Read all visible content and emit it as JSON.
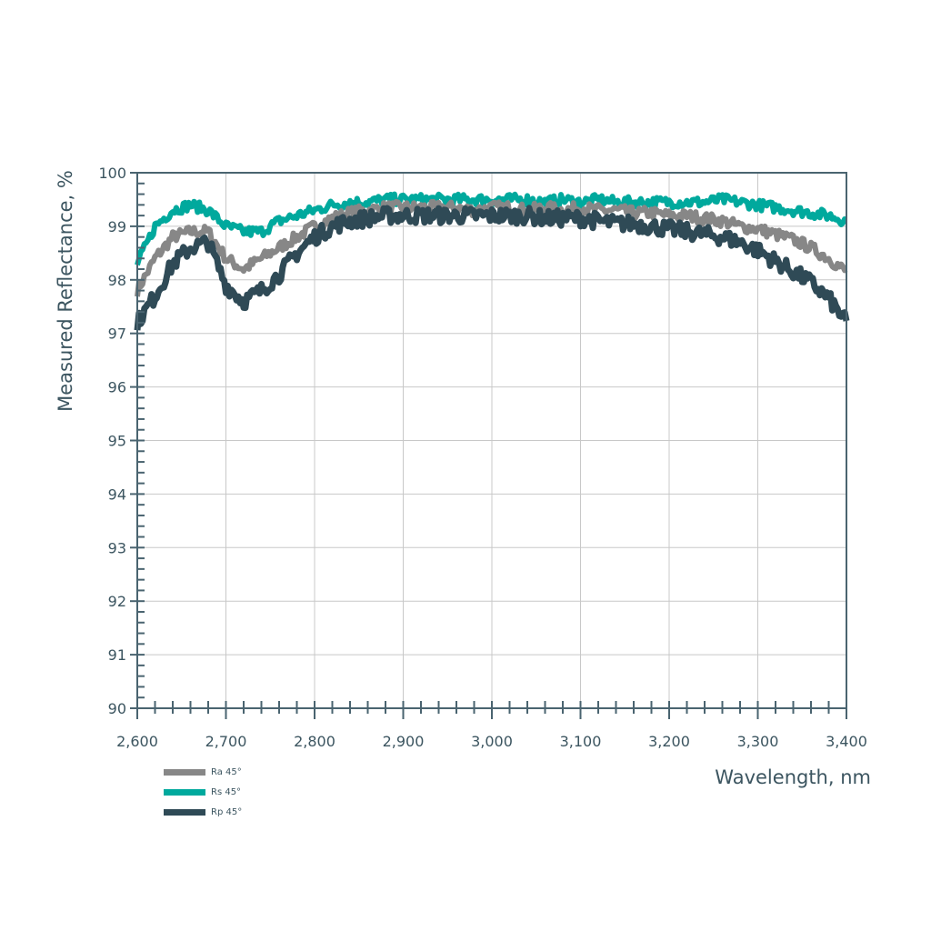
{
  "chart_data": {
    "type": "line",
    "title": "",
    "xlabel": "Wavelength, nm",
    "ylabel": "Measured Reflectance, %",
    "xlim": [
      2600,
      3400
    ],
    "ylim": [
      90,
      100
    ],
    "x_ticks": [
      "2,600",
      "2,700",
      "2,800",
      "2,900",
      "3,000",
      "3,100",
      "3,200",
      "3,300",
      "3,400"
    ],
    "y_ticks": [
      "90",
      "91",
      "92",
      "93",
      "94",
      "95",
      "96",
      "97",
      "98",
      "99",
      "100"
    ],
    "grid": true,
    "legend_position": "bottom-left",
    "x": [
      2600,
      2620,
      2640,
      2660,
      2680,
      2700,
      2720,
      2740,
      2760,
      2780,
      2800,
      2820,
      2840,
      2860,
      2880,
      2900,
      2920,
      2940,
      2960,
      2980,
      3000,
      3020,
      3040,
      3060,
      3080,
      3100,
      3120,
      3140,
      3160,
      3180,
      3200,
      3220,
      3240,
      3260,
      3280,
      3300,
      3320,
      3340,
      3360,
      3380,
      3400
    ],
    "series": [
      {
        "name": "Ra 45°",
        "color": "#878787",
        "values": [
          97.8,
          98.4,
          98.8,
          98.9,
          98.9,
          98.4,
          98.2,
          98.4,
          98.6,
          98.8,
          99.0,
          99.15,
          99.25,
          99.3,
          99.35,
          99.35,
          99.35,
          99.35,
          99.35,
          99.3,
          99.35,
          99.35,
          99.3,
          99.35,
          99.3,
          99.35,
          99.3,
          99.3,
          99.25,
          99.25,
          99.2,
          99.2,
          99.15,
          99.1,
          99.0,
          98.95,
          98.85,
          98.75,
          98.6,
          98.4,
          98.15
        ]
      },
      {
        "name": "Rs 45°",
        "color": "#00a99d",
        "values": [
          98.3,
          99.0,
          99.3,
          99.4,
          99.3,
          99.0,
          98.9,
          98.9,
          99.1,
          99.2,
          99.3,
          99.4,
          99.45,
          99.45,
          99.5,
          99.5,
          99.5,
          99.5,
          99.5,
          99.5,
          99.5,
          99.5,
          99.5,
          99.45,
          99.5,
          99.45,
          99.5,
          99.45,
          99.45,
          99.45,
          99.45,
          99.45,
          99.45,
          99.5,
          99.45,
          99.4,
          99.35,
          99.3,
          99.25,
          99.2,
          99.1
        ]
      },
      {
        "name": "Rp 45°",
        "color": "#2f4a56",
        "values": [
          97.2,
          97.7,
          98.3,
          98.6,
          98.7,
          97.9,
          97.6,
          97.8,
          98.1,
          98.5,
          98.8,
          99.0,
          99.1,
          99.15,
          99.2,
          99.2,
          99.2,
          99.2,
          99.2,
          99.2,
          99.2,
          99.2,
          99.2,
          99.15,
          99.15,
          99.15,
          99.1,
          99.05,
          99.05,
          99.0,
          98.95,
          98.9,
          98.85,
          98.8,
          98.7,
          98.55,
          98.35,
          98.15,
          97.95,
          97.65,
          97.2
        ]
      }
    ]
  },
  "axis": {
    "x_title": "Wavelength, nm",
    "y_title": "Measured Reflectance, %"
  },
  "legend": [
    {
      "label": "Ra 45°",
      "color": "#878787"
    },
    {
      "label": "Rs 45°",
      "color": "#00a99d"
    },
    {
      "label": "Rp 45°",
      "color": "#2f4a56"
    }
  ]
}
